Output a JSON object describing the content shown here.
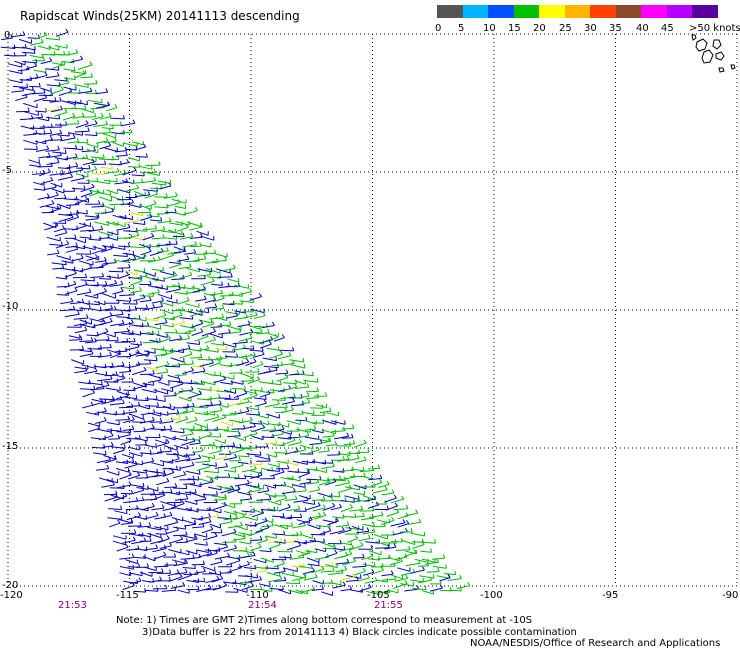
{
  "title": "Rapidscat Winds(25KM) 20141113 descending",
  "legend": {
    "labels": [
      "0",
      "5",
      "10",
      "15",
      "20",
      "25",
      "30",
      "35",
      "40",
      "45",
      ">50 knots"
    ],
    "colors": [
      "#555555",
      "#00b4ff",
      "#0050ff",
      "#00c000",
      "#ffff00",
      "#ffb400",
      "#ff4000",
      "#8a4a2a",
      "#ff00ff",
      "#b400ff",
      "#5a00a0"
    ]
  },
  "map": {
    "lon_ticks": [
      "-120",
      "-115",
      "-110",
      "-105",
      "-100",
      "-95",
      "-90"
    ],
    "lat_ticks": [
      "0",
      "-5",
      "-10",
      "-15",
      "-20"
    ],
    "times": [
      "21:53",
      "21:54",
      "21:55"
    ]
  },
  "notes": {
    "line1": "Note: 1) Times are GMT 2)Times along bottom correspond to measurement at -10S",
    "line2": "3)Data buffer is 22 hrs from 20141113 4) Black circles indicate possible contamination",
    "credit": "NOAA/NESDIS/Office of Research and Applications"
  },
  "colors": {
    "wind_blue": "#0000cc",
    "wind_green": "#00bb00",
    "wind_yellow": "#dddd00",
    "grid": "#000000"
  }
}
